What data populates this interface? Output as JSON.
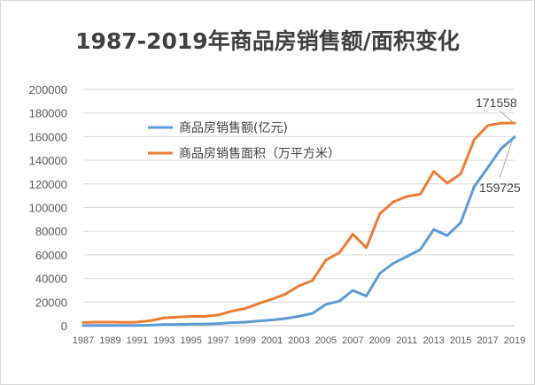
{
  "chart_data": {
    "type": "line",
    "title": "1987-2019年商品房销售额/面积变化",
    "xlabel": "",
    "ylabel": "",
    "ylim": [
      0,
      200000
    ],
    "yticks": [
      "0",
      "20000",
      "40000",
      "60000",
      "80000",
      "100000",
      "120000",
      "140000",
      "160000",
      "180000",
      "200000"
    ],
    "xticks": [
      "1987",
      "1989",
      "1991",
      "1993",
      "1995",
      "1997",
      "1999",
      "2001",
      "2003",
      "2005",
      "2007",
      "2009",
      "2011",
      "2013",
      "2015",
      "2017",
      "2019"
    ],
    "x": [
      1987,
      1988,
      1989,
      1990,
      1991,
      1992,
      1993,
      1994,
      1995,
      1996,
      1997,
      1998,
      1999,
      2000,
      2001,
      2002,
      2003,
      2004,
      2005,
      2006,
      2007,
      2008,
      2009,
      2010,
      2011,
      2012,
      2013,
      2014,
      2015,
      2016,
      2017,
      2018,
      2019
    ],
    "grid": "horizontal",
    "legend_position": "top-center",
    "series": [
      {
        "name": "商品房销售额(亿元)",
        "color": "#5b9bd5",
        "values": [
          110,
          145,
          205,
          220,
          238,
          427,
          864,
          1018,
          1258,
          1427,
          1800,
          2513,
          2988,
          3935,
          4863,
          6032,
          7956,
          10376,
          18080,
          20826,
          29889,
          25068,
          44355,
          52721,
          58589,
          64456,
          81428,
          76292,
          87281,
          117627,
          133701,
          149973,
          159725
        ]
      },
      {
        "name": "商品房销售面积（万平方米）",
        "color": "#ed7d31",
        "values": [
          2697,
          2996,
          3025,
          2868,
          3026,
          4289,
          6688,
          7230,
          7906,
          7900,
          9010,
          12185,
          14557,
          18637,
          22412,
          26808,
          33718,
          38232,
          55486,
          61857,
          77355,
          65970,
          94755,
          104765,
          109366,
          111304,
          130551,
          120649,
          128495,
          157349,
          169408,
          171465,
          171558
        ]
      }
    ],
    "annotations": [
      "171558",
      "159725"
    ]
  }
}
